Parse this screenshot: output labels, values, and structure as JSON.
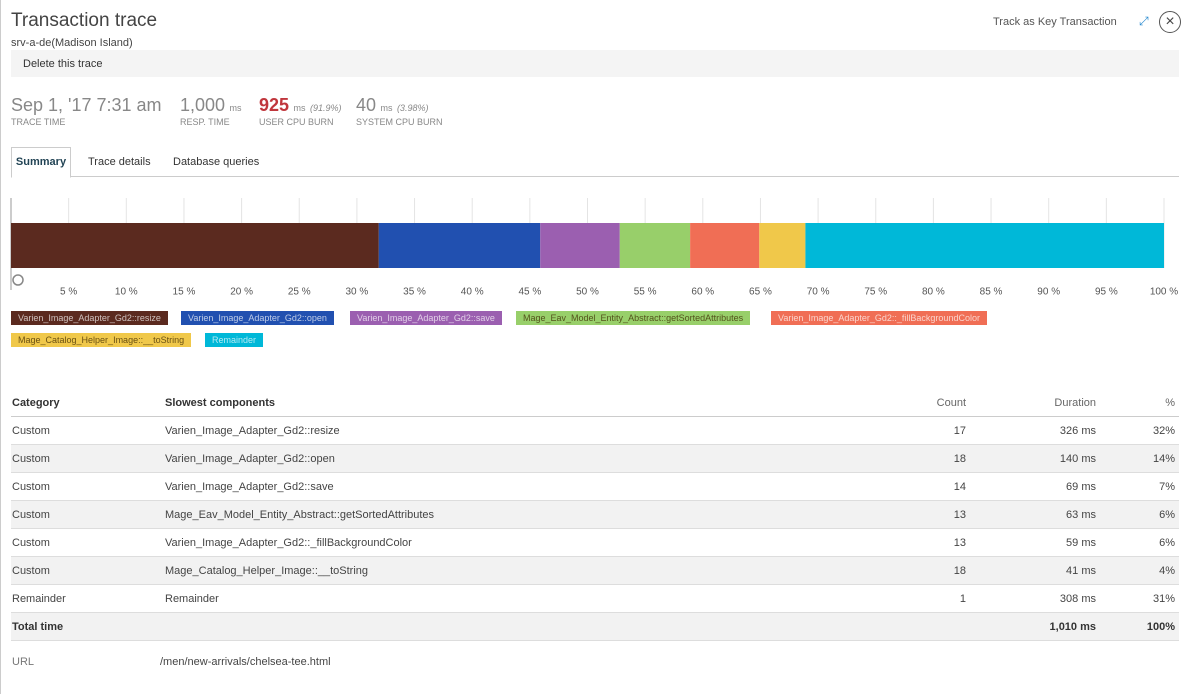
{
  "header": {
    "title": "Transaction trace",
    "subtitle": "srv-a-de(Madison Island)",
    "track": "Track as Key Transaction",
    "delete": "Delete this trace"
  },
  "metrics": [
    {
      "value": "Sep 1, '17 7:31 am",
      "label": "TRACE TIME"
    },
    {
      "value": "1,000",
      "unit": "ms",
      "label": "RESP. TIME"
    },
    {
      "value": "925",
      "unit": "ms",
      "note": "(91.9%)",
      "label": "USER CPU BURN"
    },
    {
      "value": "40",
      "unit": "ms",
      "note": "(3.98%)",
      "label": "SYSTEM CPU BURN"
    }
  ],
  "tabs": [
    "Summary",
    "Trace details",
    "Database queries"
  ],
  "chart_data": {
    "type": "stacked-bar",
    "xlim": [
      0,
      100
    ],
    "xticks": [
      {
        "value": 5,
        "label": "5 %"
      },
      {
        "value": 10,
        "label": "10 %"
      },
      {
        "value": 15,
        "label": "15 %"
      },
      {
        "value": 20,
        "label": "20 %"
      },
      {
        "value": 25,
        "label": "25 %"
      },
      {
        "value": 30,
        "label": "30 %"
      },
      {
        "value": 35,
        "label": "35 %"
      },
      {
        "value": 40,
        "label": "40 %"
      },
      {
        "value": 45,
        "label": "45 %"
      },
      {
        "value": 50,
        "label": "50 %"
      },
      {
        "value": 55,
        "label": "55 %"
      },
      {
        "value": 60,
        "label": "60 %"
      },
      {
        "value": 65,
        "label": "65 %"
      },
      {
        "value": 70,
        "label": "70 %"
      },
      {
        "value": 75,
        "label": "75 %"
      },
      {
        "value": 80,
        "label": "80 %"
      },
      {
        "value": 85,
        "label": "85 %"
      },
      {
        "value": 90,
        "label": "90 %"
      },
      {
        "value": 95,
        "label": "95 %"
      },
      {
        "value": 100,
        "label": "100 %"
      }
    ],
    "grid": true,
    "series": [
      {
        "name": "Varien_Image_Adapter_Gd2::resize",
        "color": "#5b2a1f",
        "values": [
          31.9
        ]
      },
      {
        "name": "Varien_Image_Adapter_Gd2::open",
        "color": "#2150b0",
        "values": [
          14.0
        ]
      },
      {
        "name": "Varien_Image_Adapter_Gd2::save",
        "color": "#9b5fb0",
        "values": [
          6.9
        ]
      },
      {
        "name": "Mage_Eav_Model_Entity_Abstract::getSortedAttributes",
        "color": "#98cf6a",
        "values": [
          6.1
        ]
      },
      {
        "name": "Varien_Image_Adapter_Gd2::_fillBackgroundColor",
        "color": "#f06e55",
        "values": [
          6.0
        ]
      },
      {
        "name": "Mage_Catalog_Helper_Image::__toString",
        "color": "#f0c84a",
        "values": [
          4.0
        ]
      },
      {
        "name": "Remainder",
        "color": "#00b8d8",
        "values": [
          31.1
        ]
      }
    ]
  },
  "table": {
    "columns": [
      "Category",
      "Slowest components",
      "Count",
      "Duration",
      "%"
    ],
    "rows": [
      [
        "Custom",
        "Varien_Image_Adapter_Gd2::resize",
        "17",
        "326 ms",
        "32%"
      ],
      [
        "Custom",
        "Varien_Image_Adapter_Gd2::open",
        "18",
        "140 ms",
        "14%"
      ],
      [
        "Custom",
        "Varien_Image_Adapter_Gd2::save",
        "14",
        "69 ms",
        "7%"
      ],
      [
        "Custom",
        "Mage_Eav_Model_Entity_Abstract::getSortedAttributes",
        "13",
        "63 ms",
        "6%"
      ],
      [
        "Custom",
        "Varien_Image_Adapter_Gd2::_fillBackgroundColor",
        "13",
        "59 ms",
        "6%"
      ],
      [
        "Custom",
        "Mage_Catalog_Helper_Image::__toString",
        "18",
        "41 ms",
        "4%"
      ],
      [
        "Remainder",
        "Remainder",
        "1",
        "308 ms",
        "31%"
      ]
    ],
    "total": [
      "Total time",
      "1,010 ms",
      "100%"
    ]
  },
  "url": {
    "label": "URL",
    "value": "/men/new-arrivals/chelsea-tee.html"
  }
}
